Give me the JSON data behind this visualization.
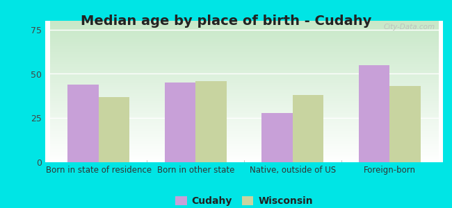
{
  "title": "Median age by place of birth - Cudahy",
  "categories": [
    "Born in state of residence",
    "Born in other state",
    "Native, outside of US",
    "Foreign-born"
  ],
  "cudahy_values": [
    44,
    45,
    28,
    55
  ],
  "wisconsin_values": [
    37,
    46,
    38,
    43
  ],
  "cudahy_color": "#c8a0d8",
  "wisconsin_color": "#c8d4a0",
  "background_color": "#00e5e5",
  "grad_top": "#c8e8c8",
  "grad_bottom": "#ffffff",
  "ylim": [
    0,
    80
  ],
  "yticks": [
    0,
    25,
    50,
    75
  ],
  "bar_width": 0.32,
  "legend_cudahy": "Cudahy",
  "legend_wisconsin": "Wisconsin",
  "title_fontsize": 14,
  "tick_fontsize": 8.5,
  "legend_fontsize": 10,
  "watermark": "City-Data.com"
}
